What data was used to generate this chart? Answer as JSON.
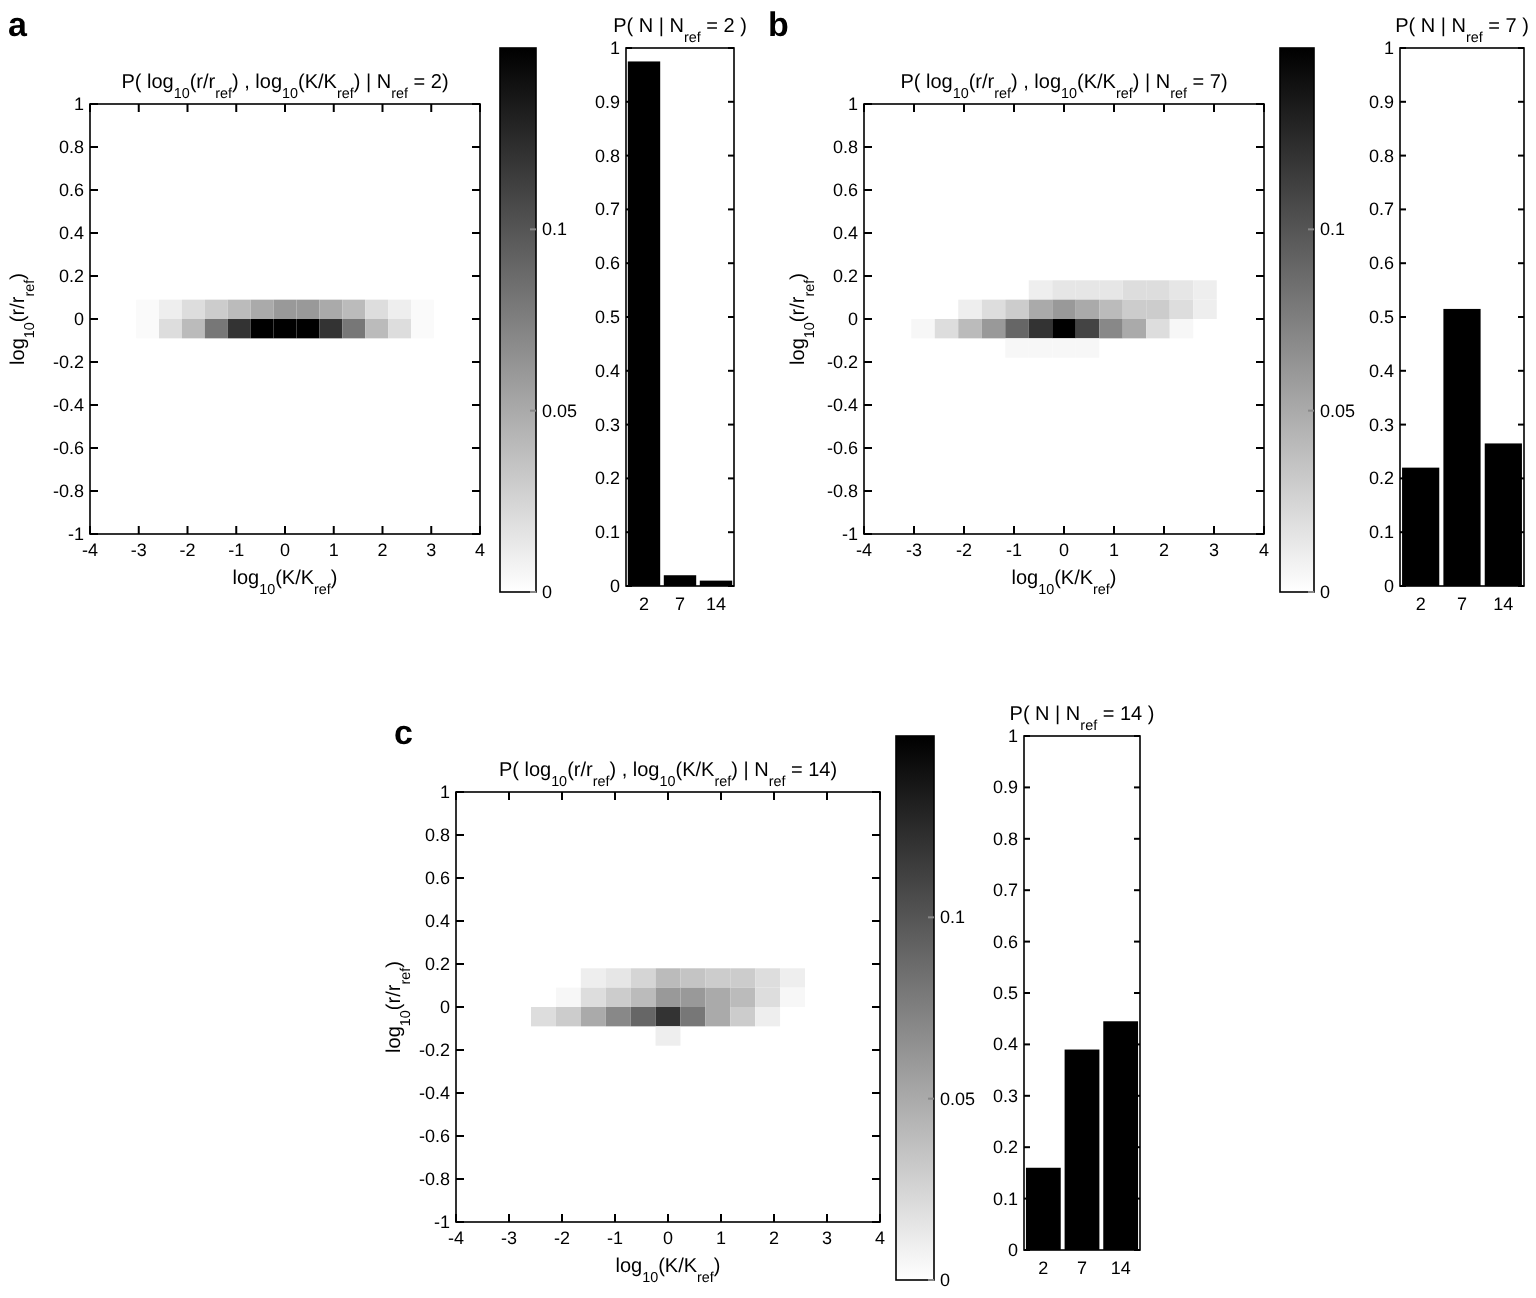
{
  "chart_data": [
    {
      "type": "heatmap",
      "title": "P( log$_{10}$(r/r$_{ref}$) , log$_{10}$(K/K$_{ref}$) | N$_{ref}$ = 2)",
      "xlabel": "log$_{10}$(K/K$_{ref}$)",
      "ylabel": "log$_{10}$(r/r$_{ref}$)",
      "annotations": [
        "a"
      ],
      "xlim": [
        -4,
        4
      ],
      "xticks": [
        -4,
        -3,
        -2,
        -1,
        0,
        1,
        2,
        3,
        4
      ],
      "ylim": [
        -1,
        1
      ],
      "yticks": [
        -1,
        -0.8,
        -0.6,
        -0.4,
        -0.2,
        0,
        0.2,
        0.4,
        0.6,
        0.8,
        1
      ],
      "clim": [
        0,
        0.15
      ],
      "cticks": [
        0,
        0.05,
        0.1
      ],
      "x": [
        -2.82,
        -2.35,
        -1.88,
        -1.41,
        -0.94,
        -0.47,
        0,
        0.47,
        0.94,
        1.41,
        1.88,
        2.35,
        2.82
      ],
      "y": [
        0.045,
        -0.045
      ],
      "cells": [
        [
          0.003,
          0.01,
          0.02,
          0.03,
          0.04,
          0.05,
          0.06,
          0.06,
          0.05,
          0.04,
          0.02,
          0.01,
          0.003
        ],
        [
          0.003,
          0.02,
          0.04,
          0.08,
          0.12,
          0.15,
          0.15,
          0.15,
          0.12,
          0.08,
          0.04,
          0.02,
          0.003
        ]
      ]
    },
    {
      "type": "bar",
      "title": "P( N | N$_{ref}$ = 2 )",
      "categories": [
        "2",
        "7",
        "14"
      ],
      "values": [
        0.975,
        0.02,
        0.01
      ],
      "color": "#000000",
      "ylim": [
        0,
        1
      ],
      "yticks": [
        0,
        0.1,
        0.2,
        0.3,
        0.4,
        0.5,
        0.6,
        0.7,
        0.8,
        0.9,
        1
      ]
    },
    {
      "type": "heatmap",
      "title": "P( log$_{10}$(r/r$_{ref}$) , log$_{10}$(K/K$_{ref}$) | N$_{ref}$ = 7)",
      "xlabel": "log$_{10}$(K/K$_{ref}$)",
      "ylabel": "log$_{10}$(r/r$_{ref}$)",
      "annotations": [
        "b"
      ],
      "xlim": [
        -4,
        4
      ],
      "xticks": [
        -4,
        -3,
        -2,
        -1,
        0,
        1,
        2,
        3,
        4
      ],
      "ylim": [
        -1,
        1
      ],
      "yticks": [
        -1,
        -0.8,
        -0.6,
        -0.4,
        -0.2,
        0,
        0.2,
        0.4,
        0.6,
        0.8,
        1
      ],
      "clim": [
        0,
        0.15
      ],
      "cticks": [
        0,
        0.05,
        0.1
      ],
      "x": [
        -2.82,
        -2.35,
        -1.88,
        -1.41,
        -0.94,
        -0.47,
        0,
        0.47,
        0.94,
        1.41,
        1.88,
        2.35,
        2.82
      ],
      "y": [
        0.135,
        0.045,
        -0.045,
        -0.135
      ],
      "cells": [
        [
          null,
          null,
          null,
          null,
          null,
          0.01,
          0.015,
          0.015,
          0.015,
          0.02,
          0.02,
          0.015,
          0.01
        ],
        [
          null,
          null,
          0.01,
          0.02,
          0.03,
          0.05,
          0.06,
          0.05,
          0.04,
          0.03,
          0.03,
          0.02,
          0.01
        ],
        [
          0.005,
          0.02,
          0.04,
          0.06,
          0.09,
          0.12,
          0.15,
          0.11,
          0.07,
          0.05,
          0.02,
          0.005,
          null
        ],
        [
          null,
          null,
          null,
          null,
          0.005,
          0.005,
          0.005,
          0.005,
          null,
          null,
          null,
          null,
          null
        ]
      ]
    },
    {
      "type": "bar",
      "title": "P( N | N$_{ref}$ = 7 )",
      "categories": [
        "2",
        "7",
        "14"
      ],
      "values": [
        0.22,
        0.515,
        0.265
      ],
      "color": "#000000",
      "ylim": [
        0,
        1
      ],
      "yticks": [
        0,
        0.1,
        0.2,
        0.3,
        0.4,
        0.5,
        0.6,
        0.7,
        0.8,
        0.9,
        1
      ]
    },
    {
      "type": "heatmap",
      "title": "P( log$_{10}$(r/r$_{ref}$) , log$_{10}$(K/K$_{ref}$) | N$_{ref}$ = 14)",
      "xlabel": "log$_{10}$(K/K$_{ref}$)",
      "ylabel": "log$_{10}$(r/r$_{ref}$)",
      "annotations": [
        "c"
      ],
      "xlim": [
        -4,
        4
      ],
      "xticks": [
        -4,
        -3,
        -2,
        -1,
        0,
        1,
        2,
        3,
        4
      ],
      "ylim": [
        -1,
        1
      ],
      "yticks": [
        -1,
        -0.8,
        -0.6,
        -0.4,
        -0.2,
        0,
        0.2,
        0.4,
        0.6,
        0.8,
        1
      ],
      "clim": [
        0,
        0.15
      ],
      "cticks": [
        0,
        0.05,
        0.1
      ],
      "x": [
        -2.35,
        -1.88,
        -1.41,
        -0.94,
        -0.47,
        0,
        0.47,
        0.94,
        1.41,
        1.88,
        2.35
      ],
      "y": [
        0.135,
        0.045,
        -0.045,
        -0.135
      ],
      "cells": [
        [
          null,
          null,
          0.01,
          0.015,
          0.025,
          0.04,
          0.035,
          0.03,
          0.03,
          0.02,
          0.01
        ],
        [
          null,
          0.005,
          0.02,
          0.03,
          0.04,
          0.06,
          0.06,
          0.05,
          0.04,
          0.02,
          0.005
        ],
        [
          0.02,
          0.03,
          0.05,
          0.07,
          0.09,
          0.12,
          0.08,
          0.05,
          0.03,
          0.01,
          null
        ],
        [
          null,
          null,
          null,
          null,
          null,
          0.01,
          null,
          null,
          null,
          null,
          null
        ]
      ]
    },
    {
      "type": "bar",
      "title": "P( N | N$_{ref}$ = 14 )",
      "categories": [
        "2",
        "7",
        "14"
      ],
      "values": [
        0.16,
        0.39,
        0.445
      ],
      "color": "#000000",
      "ylim": [
        0,
        1
      ],
      "yticks": [
        0,
        0.1,
        0.2,
        0.3,
        0.4,
        0.5,
        0.6,
        0.7,
        0.8,
        0.9,
        1
      ]
    }
  ]
}
